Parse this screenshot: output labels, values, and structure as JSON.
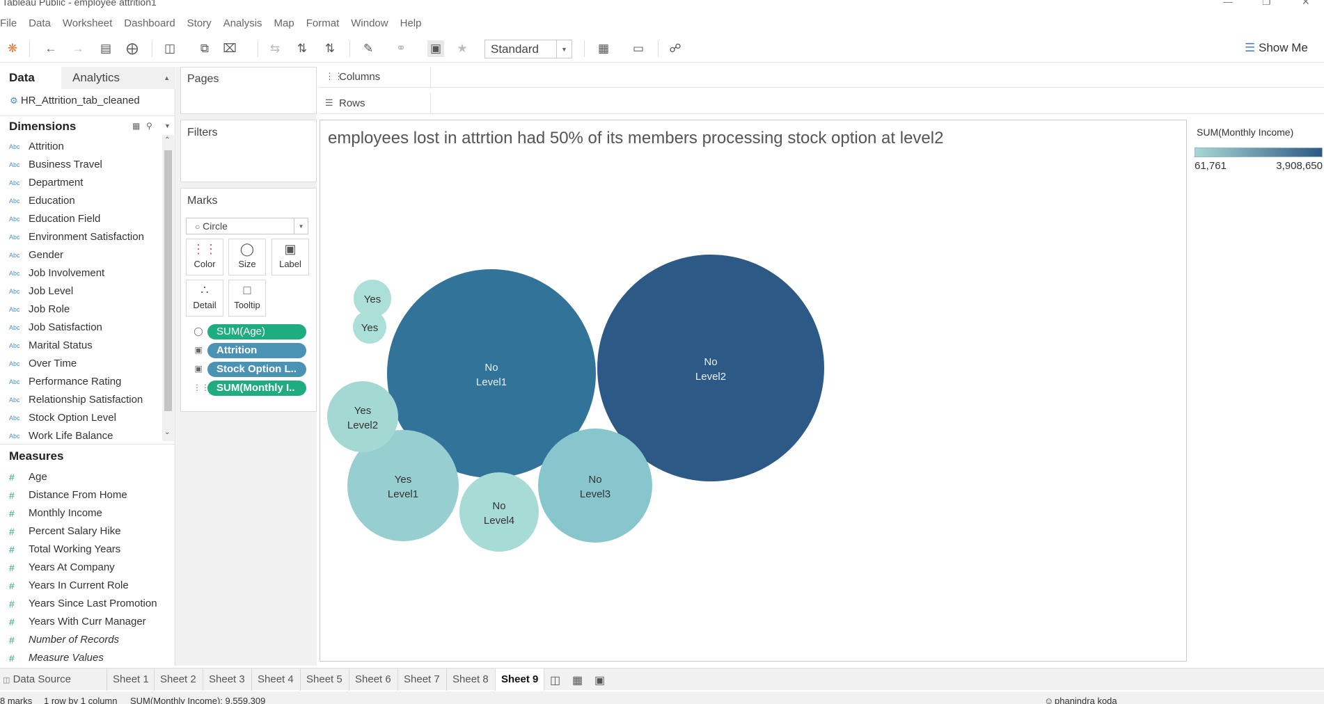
{
  "window": {
    "title": "Tableau Public - employee attrition1"
  },
  "menu": [
    "File",
    "Data",
    "Worksheet",
    "Dashboard",
    "Story",
    "Analysis",
    "Map",
    "Format",
    "Window",
    "Help"
  ],
  "toolbar": {
    "fit": "Standard",
    "show_me": "Show Me"
  },
  "data_pane": {
    "tab_data": "Data",
    "tab_analytics": "Analytics",
    "datasource": "HR_Attrition_tab_cleaned",
    "dimensions_title": "Dimensions",
    "dimensions": [
      "Attrition",
      "Business Travel",
      "Department",
      "Education",
      "Education Field",
      "Environment Satisfaction",
      "Gender",
      "Job Involvement",
      "Job Level",
      "Job Role",
      "Job Satisfaction",
      "Marital Status",
      "Over Time",
      "Performance Rating",
      "Relationship Satisfaction",
      "Stock Option Level",
      "Work Life Balance"
    ],
    "dimension_type": "Abc",
    "measures_title": "Measures",
    "measures": [
      "Age",
      "Distance From Home",
      "Monthly Income",
      "Percent Salary Hike",
      "Total Working Years",
      "Years At Company",
      "Years In Current Role",
      "Years Since Last Promotion",
      "Years With Curr Manager",
      "Number of Records",
      "Measure Values"
    ]
  },
  "cards": {
    "pages": "Pages",
    "filters": "Filters",
    "marks": "Marks",
    "mark_type": "Circle",
    "buttons": [
      "Color",
      "Size",
      "Label",
      "Detail",
      "Tooltip"
    ],
    "pills": [
      {
        "label": "SUM(Age)",
        "color": "#1fad80"
      },
      {
        "label": "Attrition",
        "color": "#4a93b5"
      },
      {
        "label": "Stock Option L..",
        "color": "#4a93b5"
      },
      {
        "label": "SUM(Monthly I..",
        "color": "#1fad80"
      }
    ]
  },
  "shelves": {
    "columns": "Columns",
    "rows": "Rows"
  },
  "view": {
    "title": "employees lost in attrtion had 50% of its members processing stock option at level2"
  },
  "legend": {
    "title": "SUM(Monthly Income)",
    "min": "61,761",
    "max": "3,908,650",
    "color_low": "#a6d8d3",
    "color_high": "#2d5983"
  },
  "chart_data": {
    "type": "packed bubbles",
    "size_measure": "SUM(Age)",
    "color_measure": "SUM(Monthly Income)",
    "bubbles": [
      {
        "attrition": "No",
        "level": "Level2",
        "color": "#2c5986"
      },
      {
        "attrition": "No",
        "level": "Level1",
        "color": "#317399"
      },
      {
        "attrition": "No",
        "level": "Level3",
        "color": "#88c6ce"
      },
      {
        "attrition": "Yes",
        "level": "Level1",
        "color": "#97cfd0"
      },
      {
        "attrition": "No",
        "level": "Level4",
        "color": "#a7dbd6"
      },
      {
        "attrition": "Yes",
        "level": "Level2",
        "color": "#a3d8d3"
      },
      {
        "attrition": "Yes",
        "level": "",
        "color": "#acdfd8"
      },
      {
        "attrition": "Yes",
        "level": "",
        "color": "#acdfd8"
      }
    ]
  },
  "sheets": [
    "Data Source",
    "Sheet 1",
    "Sheet 2",
    "Sheet 3",
    "Sheet 4",
    "Sheet 5",
    "Sheet 6",
    "Sheet 7",
    "Sheet 8",
    "Sheet 9"
  ],
  "active_sheet": "Sheet 9",
  "status": {
    "marks": "8 marks",
    "rows_cols": "1 row by 1 column",
    "sum": "SUM(Monthly Income): 9,559,309",
    "user": "phanindra koda"
  }
}
